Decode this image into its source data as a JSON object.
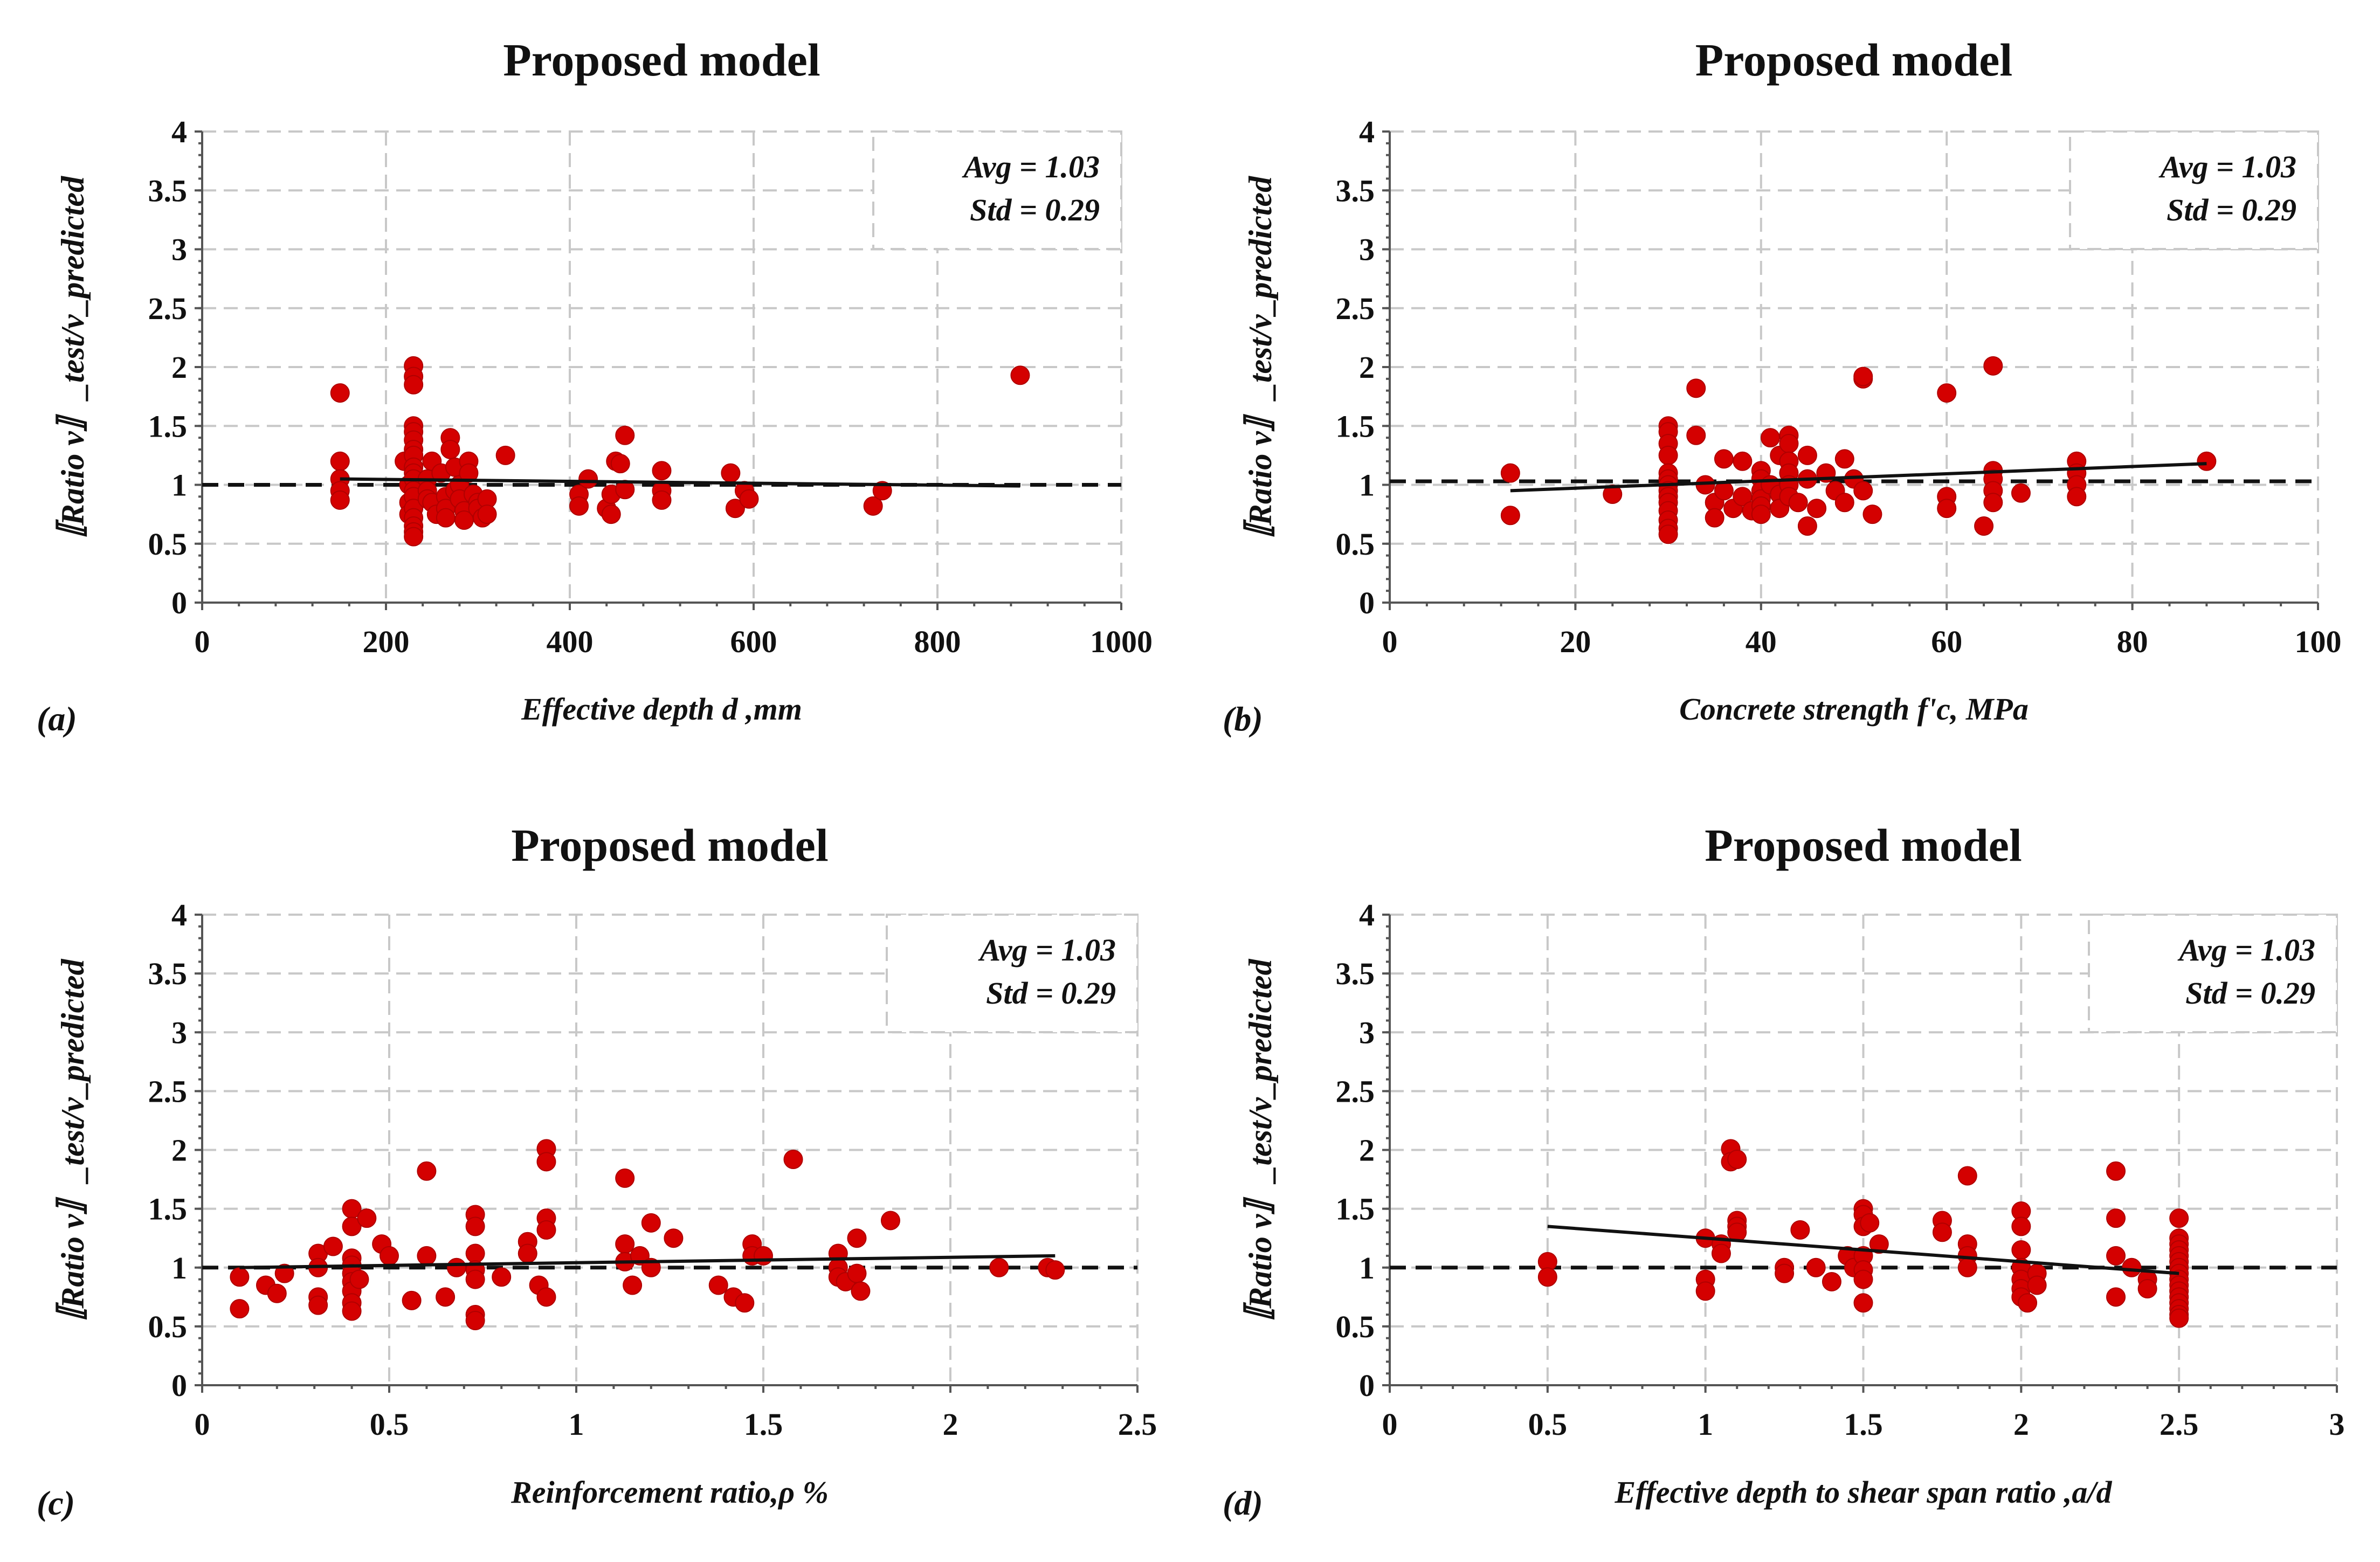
{
  "chart_data": [
    {
      "panel": "(a)",
      "type": "scatter",
      "title": "Proposed model",
      "xlabel": "Effective depth d ,mm",
      "ylabel": "〚Ratio v〛_test/v_predicted",
      "xlim": [
        0,
        1000
      ],
      "ylim": [
        0,
        4
      ],
      "xticks": [
        0,
        200,
        400,
        600,
        800,
        1000
      ],
      "xtick_labels": [
        "0",
        "200",
        "400",
        "600",
        "800",
        "1000"
      ],
      "yticks": [
        0,
        0.5,
        1,
        1.5,
        2,
        2.5,
        3,
        3.5,
        4
      ],
      "ytick_labels": [
        "0",
        "0.5",
        "1",
        "1.5",
        "2",
        "2.5",
        "3",
        "3.5",
        "4"
      ],
      "grid": true,
      "stats": {
        "avg": "Avg = 1.03",
        "std": "Std = 0.29"
      },
      "stats_position": "top-right",
      "reference_line": {
        "y": 1,
        "style": "dashed"
      },
      "trend_line": {
        "x": [
          150,
          890
        ],
        "y": [
          1.05,
          0.99
        ]
      },
      "points": [
        [
          150,
          1.78
        ],
        [
          150,
          1.2
        ],
        [
          150,
          1.05
        ],
        [
          150,
          0.95
        ],
        [
          150,
          0.87
        ],
        [
          220,
          1.2
        ],
        [
          225,
          1.0
        ],
        [
          225,
          0.85
        ],
        [
          225,
          0.75
        ],
        [
          230,
          2.01
        ],
        [
          230,
          1.92
        ],
        [
          230,
          1.85
        ],
        [
          230,
          1.5
        ],
        [
          230,
          1.45
        ],
        [
          230,
          1.38
        ],
        [
          230,
          1.3
        ],
        [
          230,
          1.25
        ],
        [
          230,
          1.15
        ],
        [
          230,
          1.1
        ],
        [
          230,
          1.05
        ],
        [
          230,
          0.95
        ],
        [
          230,
          0.9
        ],
        [
          230,
          0.8
        ],
        [
          230,
          0.72
        ],
        [
          230,
          0.65
        ],
        [
          230,
          0.6
        ],
        [
          230,
          0.56
        ],
        [
          245,
          1.05
        ],
        [
          245,
          0.95
        ],
        [
          245,
          0.88
        ],
        [
          250,
          1.2
        ],
        [
          250,
          0.85
        ],
        [
          255,
          0.75
        ],
        [
          260,
          1.1
        ],
        [
          265,
          0.9
        ],
        [
          265,
          0.8
        ],
        [
          265,
          0.72
        ],
        [
          270,
          1.4
        ],
        [
          270,
          1.3
        ],
        [
          275,
          1.15
        ],
        [
          275,
          0.95
        ],
        [
          280,
          1.0
        ],
        [
          280,
          0.88
        ],
        [
          285,
          0.78
        ],
        [
          285,
          0.7
        ],
        [
          290,
          1.2
        ],
        [
          290,
          1.1
        ],
        [
          295,
          0.92
        ],
        [
          300,
          0.85
        ],
        [
          300,
          0.8
        ],
        [
          305,
          0.72
        ],
        [
          310,
          0.88
        ],
        [
          310,
          0.75
        ],
        [
          330,
          1.25
        ],
        [
          410,
          0.92
        ],
        [
          410,
          0.82
        ],
        [
          420,
          1.05
        ],
        [
          440,
          0.8
        ],
        [
          445,
          0.75
        ],
        [
          445,
          0.92
        ],
        [
          450,
          1.2
        ],
        [
          455,
          1.18
        ],
        [
          460,
          1.42
        ],
        [
          460,
          0.96
        ],
        [
          500,
          1.12
        ],
        [
          500,
          0.95
        ],
        [
          500,
          0.87
        ],
        [
          575,
          1.1
        ],
        [
          580,
          0.8
        ],
        [
          590,
          0.95
        ],
        [
          595,
          0.88
        ],
        [
          730,
          0.82
        ],
        [
          740,
          0.95
        ],
        [
          890,
          1.93
        ]
      ]
    },
    {
      "panel": "(b)",
      "type": "scatter",
      "title": "Proposed model",
      "xlabel": "Concrete strength f'c, MPa",
      "ylabel": "〚Ratio v〛_test/v_predicted",
      "xlim": [
        0,
        100
      ],
      "ylim": [
        0,
        4
      ],
      "xticks": [
        0,
        20,
        40,
        60,
        80,
        100
      ],
      "xtick_labels": [
        "0",
        "20",
        "40",
        "60",
        "80",
        "100"
      ],
      "yticks": [
        0,
        0.5,
        1,
        1.5,
        2,
        2.5,
        3,
        3.5,
        4
      ],
      "ytick_labels": [
        "0",
        "0.5",
        "1",
        "1.5",
        "2",
        "2.5",
        "3",
        "3.5",
        "4"
      ],
      "grid": true,
      "stats": {
        "avg": "Avg = 1.03",
        "std": "Std = 0.29"
      },
      "stats_position": "top-right",
      "reference_line": {
        "y": 1.03,
        "style": "dashed"
      },
      "trend_line": {
        "x": [
          13,
          88
        ],
        "y": [
          0.95,
          1.18
        ]
      },
      "points": [
        [
          13,
          1.1
        ],
        [
          13,
          0.74
        ],
        [
          24,
          0.92
        ],
        [
          30,
          1.5
        ],
        [
          30,
          1.45
        ],
        [
          30,
          1.35
        ],
        [
          30,
          1.25
        ],
        [
          30,
          1.1
        ],
        [
          30,
          1.05
        ],
        [
          30,
          1.0
        ],
        [
          30,
          0.95
        ],
        [
          30,
          0.9
        ],
        [
          30,
          0.85
        ],
        [
          30,
          0.78
        ],
        [
          30,
          0.7
        ],
        [
          30,
          0.63
        ],
        [
          30,
          0.58
        ],
        [
          33,
          1.82
        ],
        [
          33,
          1.42
        ],
        [
          34,
          1.0
        ],
        [
          35,
          0.85
        ],
        [
          35,
          0.72
        ],
        [
          36,
          1.22
        ],
        [
          36,
          0.95
        ],
        [
          37,
          0.8
        ],
        [
          38,
          1.2
        ],
        [
          38,
          0.9
        ],
        [
          39,
          0.78
        ],
        [
          40,
          1.12
        ],
        [
          40,
          1.05
        ],
        [
          40,
          0.95
        ],
        [
          40,
          0.88
        ],
        [
          40,
          0.82
        ],
        [
          40,
          0.75
        ],
        [
          41,
          1.4
        ],
        [
          41,
          1.0
        ],
        [
          42,
          1.25
        ],
        [
          42,
          0.92
        ],
        [
          42,
          0.8
        ],
        [
          43,
          1.42
        ],
        [
          43,
          1.35
        ],
        [
          43,
          1.2
        ],
        [
          43,
          1.1
        ],
        [
          43,
          1.0
        ],
        [
          43,
          0.9
        ],
        [
          44,
          0.85
        ],
        [
          45,
          1.25
        ],
        [
          45,
          1.05
        ],
        [
          45,
          0.65
        ],
        [
          46,
          0.8
        ],
        [
          47,
          1.1
        ],
        [
          48,
          0.95
        ],
        [
          49,
          1.22
        ],
        [
          49,
          0.85
        ],
        [
          50,
          1.05
        ],
        [
          51,
          1.9
        ],
        [
          51,
          1.92
        ],
        [
          51,
          0.95
        ],
        [
          52,
          0.75
        ],
        [
          60,
          1.78
        ],
        [
          60,
          0.9
        ],
        [
          60,
          0.8
        ],
        [
          64,
          0.65
        ],
        [
          65,
          2.01
        ],
        [
          65,
          1.12
        ],
        [
          65,
          1.05
        ],
        [
          65,
          0.95
        ],
        [
          65,
          0.85
        ],
        [
          68,
          0.93
        ],
        [
          74,
          1.2
        ],
        [
          74,
          1.1
        ],
        [
          74,
          1.0
        ],
        [
          74,
          0.9
        ],
        [
          88,
          1.2
        ]
      ]
    },
    {
      "panel": "(c)",
      "type": "scatter",
      "title": "Proposed model",
      "xlabel": "Reinforcement ratio,ρ %",
      "ylabel": "〚Ratio v〛_test/v_predicted",
      "xlim": [
        0,
        2.5
      ],
      "ylim": [
        0,
        4
      ],
      "xticks": [
        0,
        0.5,
        1,
        1.5,
        2,
        2.5
      ],
      "xtick_labels": [
        "0",
        "0.5",
        "1",
        "1.5",
        "2",
        "2.5"
      ],
      "yticks": [
        0,
        0.5,
        1,
        1.5,
        2,
        2.5,
        3,
        3.5,
        4
      ],
      "ytick_labels": [
        "0",
        "0.5",
        "1",
        "1.5",
        "2",
        "2.5",
        "3",
        "3.5",
        "4"
      ],
      "grid": true,
      "stats": {
        "avg": "Avg = 1.03",
        "std": "Std = 0.29"
      },
      "stats_position": "top-right",
      "reference_line": {
        "y": 1,
        "style": "dashed"
      },
      "trend_line": {
        "x": [
          0.1,
          2.28
        ],
        "y": [
          1.0,
          1.1
        ]
      },
      "points": [
        [
          0.1,
          0.92
        ],
        [
          0.1,
          0.65
        ],
        [
          0.17,
          0.85
        ],
        [
          0.2,
          0.78
        ],
        [
          0.22,
          0.95
        ],
        [
          0.31,
          1.12
        ],
        [
          0.31,
          1.0
        ],
        [
          0.31,
          0.75
        ],
        [
          0.31,
          0.68
        ],
        [
          0.35,
          1.18
        ],
        [
          0.4,
          1.5
        ],
        [
          0.4,
          1.35
        ],
        [
          0.4,
          1.08
        ],
        [
          0.4,
          1.02
        ],
        [
          0.4,
          0.95
        ],
        [
          0.4,
          0.88
        ],
        [
          0.4,
          0.8
        ],
        [
          0.4,
          0.7
        ],
        [
          0.4,
          0.63
        ],
        [
          0.42,
          0.9
        ],
        [
          0.44,
          1.42
        ],
        [
          0.48,
          1.2
        ],
        [
          0.5,
          1.1
        ],
        [
          0.56,
          0.72
        ],
        [
          0.6,
          1.82
        ],
        [
          0.6,
          1.1
        ],
        [
          0.65,
          0.75
        ],
        [
          0.68,
          1.0
        ],
        [
          0.73,
          1.45
        ],
        [
          0.73,
          1.35
        ],
        [
          0.73,
          1.12
        ],
        [
          0.73,
          0.98
        ],
        [
          0.73,
          0.9
        ],
        [
          0.73,
          0.6
        ],
        [
          0.73,
          0.55
        ],
        [
          0.8,
          0.92
        ],
        [
          0.87,
          1.22
        ],
        [
          0.87,
          1.12
        ],
        [
          0.9,
          0.85
        ],
        [
          0.92,
          0.75
        ],
        [
          0.92,
          1.42
        ],
        [
          0.92,
          1.32
        ],
        [
          0.92,
          2.01
        ],
        [
          0.92,
          1.9
        ],
        [
          1.13,
          1.76
        ],
        [
          1.13,
          1.2
        ],
        [
          1.13,
          1.05
        ],
        [
          1.15,
          0.85
        ],
        [
          1.17,
          1.1
        ],
        [
          1.2,
          1.38
        ],
        [
          1.2,
          1.0
        ],
        [
          1.26,
          1.25
        ],
        [
          1.38,
          0.85
        ],
        [
          1.42,
          0.75
        ],
        [
          1.45,
          0.7
        ],
        [
          1.47,
          1.2
        ],
        [
          1.47,
          1.1
        ],
        [
          1.5,
          1.1
        ],
        [
          1.58,
          1.92
        ],
        [
          1.7,
          1.12
        ],
        [
          1.7,
          1.0
        ],
        [
          1.7,
          0.92
        ],
        [
          1.72,
          0.88
        ],
        [
          1.75,
          1.25
        ],
        [
          1.75,
          0.95
        ],
        [
          1.76,
          0.8
        ],
        [
          1.84,
          1.4
        ],
        [
          2.13,
          1.0
        ],
        [
          2.26,
          1.0
        ],
        [
          2.28,
          0.98
        ]
      ]
    },
    {
      "panel": "(d)",
      "type": "scatter",
      "title": "Proposed model",
      "xlabel": "Effective depth to shear span ratio ,a/d",
      "ylabel": "〚Ratio v〛_test/v_predicted",
      "xlim": [
        0,
        3
      ],
      "ylim": [
        0,
        4
      ],
      "xticks": [
        0,
        0.5,
        1,
        1.5,
        2,
        2.5,
        3
      ],
      "xtick_labels": [
        "0",
        "0.5",
        "1",
        "1.5",
        "2",
        "2.5",
        "3"
      ],
      "yticks": [
        0,
        0.5,
        1,
        1.5,
        2,
        2.5,
        3,
        3.5,
        4
      ],
      "ytick_labels": [
        "0",
        "0.5",
        "1",
        "1.5",
        "2",
        "2.5",
        "3",
        "3.5",
        "4"
      ],
      "grid": true,
      "stats": {
        "avg": "Avg = 1.03",
        "std": "Std = 0.29"
      },
      "stats_position": "top-right",
      "reference_line": {
        "y": 1,
        "style": "dashed"
      },
      "trend_line": {
        "x": [
          0.5,
          2.5
        ],
        "y": [
          1.35,
          0.95
        ]
      },
      "points": [
        [
          0.5,
          1.05
        ],
        [
          0.5,
          0.92
        ],
        [
          1.0,
          1.25
        ],
        [
          1.0,
          0.9
        ],
        [
          1.0,
          0.8
        ],
        [
          1.05,
          1.2
        ],
        [
          1.05,
          1.12
        ],
        [
          1.08,
          2.01
        ],
        [
          1.08,
          1.9
        ],
        [
          1.1,
          1.92
        ],
        [
          1.1,
          1.4
        ],
        [
          1.1,
          1.35
        ],
        [
          1.1,
          1.3
        ],
        [
          1.25,
          1.0
        ],
        [
          1.25,
          0.95
        ],
        [
          1.3,
          1.32
        ],
        [
          1.35,
          1.0
        ],
        [
          1.4,
          0.88
        ],
        [
          1.45,
          1.1
        ],
        [
          1.47,
          1.0
        ],
        [
          1.5,
          1.5
        ],
        [
          1.5,
          1.45
        ],
        [
          1.5,
          1.35
        ],
        [
          1.5,
          1.1
        ],
        [
          1.5,
          0.98
        ],
        [
          1.5,
          0.9
        ],
        [
          1.5,
          0.7
        ],
        [
          1.52,
          1.38
        ],
        [
          1.55,
          1.2
        ],
        [
          1.75,
          1.4
        ],
        [
          1.75,
          1.3
        ],
        [
          1.83,
          1.78
        ],
        [
          1.83,
          1.2
        ],
        [
          1.83,
          1.1
        ],
        [
          1.83,
          1.0
        ],
        [
          2.0,
          1.48
        ],
        [
          2.0,
          1.35
        ],
        [
          2.0,
          1.15
        ],
        [
          2.0,
          1.0
        ],
        [
          2.0,
          0.9
        ],
        [
          2.0,
          0.82
        ],
        [
          2.0,
          0.75
        ],
        [
          2.02,
          0.7
        ],
        [
          2.05,
          0.95
        ],
        [
          2.05,
          0.85
        ],
        [
          2.3,
          1.82
        ],
        [
          2.3,
          1.42
        ],
        [
          2.3,
          1.1
        ],
        [
          2.3,
          0.75
        ],
        [
          2.35,
          1.0
        ],
        [
          2.4,
          0.9
        ],
        [
          2.4,
          0.82
        ],
        [
          2.5,
          1.42
        ],
        [
          2.5,
          1.25
        ],
        [
          2.5,
          1.2
        ],
        [
          2.5,
          1.15
        ],
        [
          2.5,
          1.1
        ],
        [
          2.5,
          1.05
        ],
        [
          2.5,
          1.0
        ],
        [
          2.5,
          0.95
        ],
        [
          2.5,
          0.9
        ],
        [
          2.5,
          0.85
        ],
        [
          2.5,
          0.8
        ],
        [
          2.5,
          0.75
        ],
        [
          2.5,
          0.7
        ],
        [
          2.5,
          0.65
        ],
        [
          2.5,
          0.6
        ],
        [
          2.5,
          0.57
        ]
      ]
    }
  ]
}
